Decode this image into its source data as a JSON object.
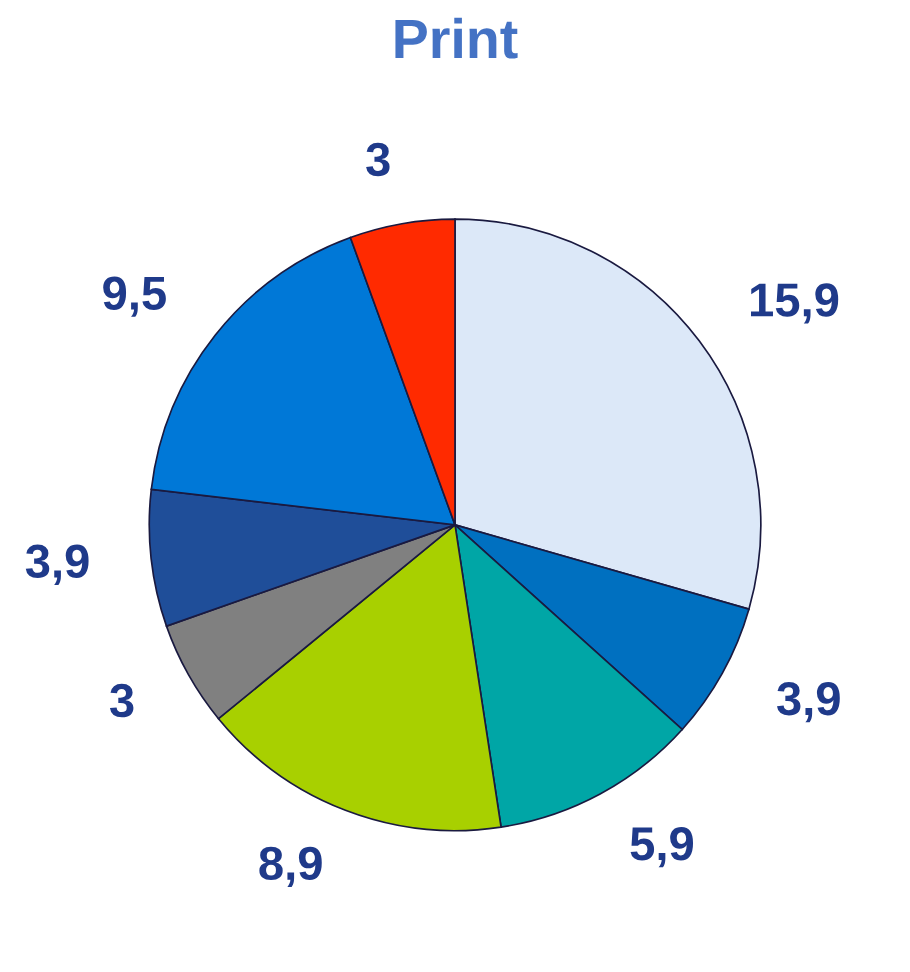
{
  "chart_data": {
    "type": "pie",
    "title": "Print",
    "categories": [
      null,
      null,
      null,
      null,
      null,
      null,
      null,
      null
    ],
    "values": [
      15.9,
      3.9,
      5.9,
      8.9,
      3,
      3.9,
      9.5,
      3
    ],
    "value_labels": [
      "15,9",
      "3,9",
      "5,9",
      "8,9",
      "3",
      "3,9",
      "9,5",
      "3"
    ],
    "colors": [
      "#dce8f8",
      "#0070c0",
      "#00a6a6",
      "#a8d000",
      "#808080",
      "#1f4e99",
      "#0078d7",
      "#ff2a00"
    ]
  }
}
